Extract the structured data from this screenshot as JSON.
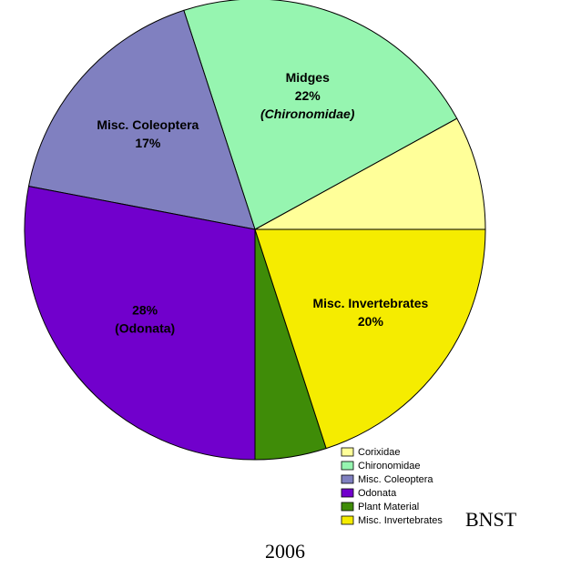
{
  "chart_data": {
    "type": "pie",
    "categories": [
      "Corixidae",
      "Chironomidae",
      "Misc. Coleoptera",
      "Odonata",
      "Plant Material",
      "Misc. Invertebrates"
    ],
    "values": [
      8,
      22,
      17,
      28,
      5,
      20
    ],
    "value_labels": [
      null,
      "22%",
      "17%",
      "28%",
      null,
      "20%"
    ],
    "slice_labels": [
      null,
      {
        "above": "Midges",
        "below": "(Chironomidae)"
      },
      {
        "above": "Misc. Coleoptera"
      },
      {
        "below": "(Odonata)"
      },
      null,
      {
        "above": "Misc. Invertebrates"
      }
    ],
    "colors": [
      "#ffff99",
      "#96f5b0",
      "#8080c0",
      "#7100cc",
      "#3f8c08",
      "#f5ec00"
    ],
    "legend": "bottom-right",
    "caption_lines": [
      "BNST",
      "2006"
    ]
  }
}
